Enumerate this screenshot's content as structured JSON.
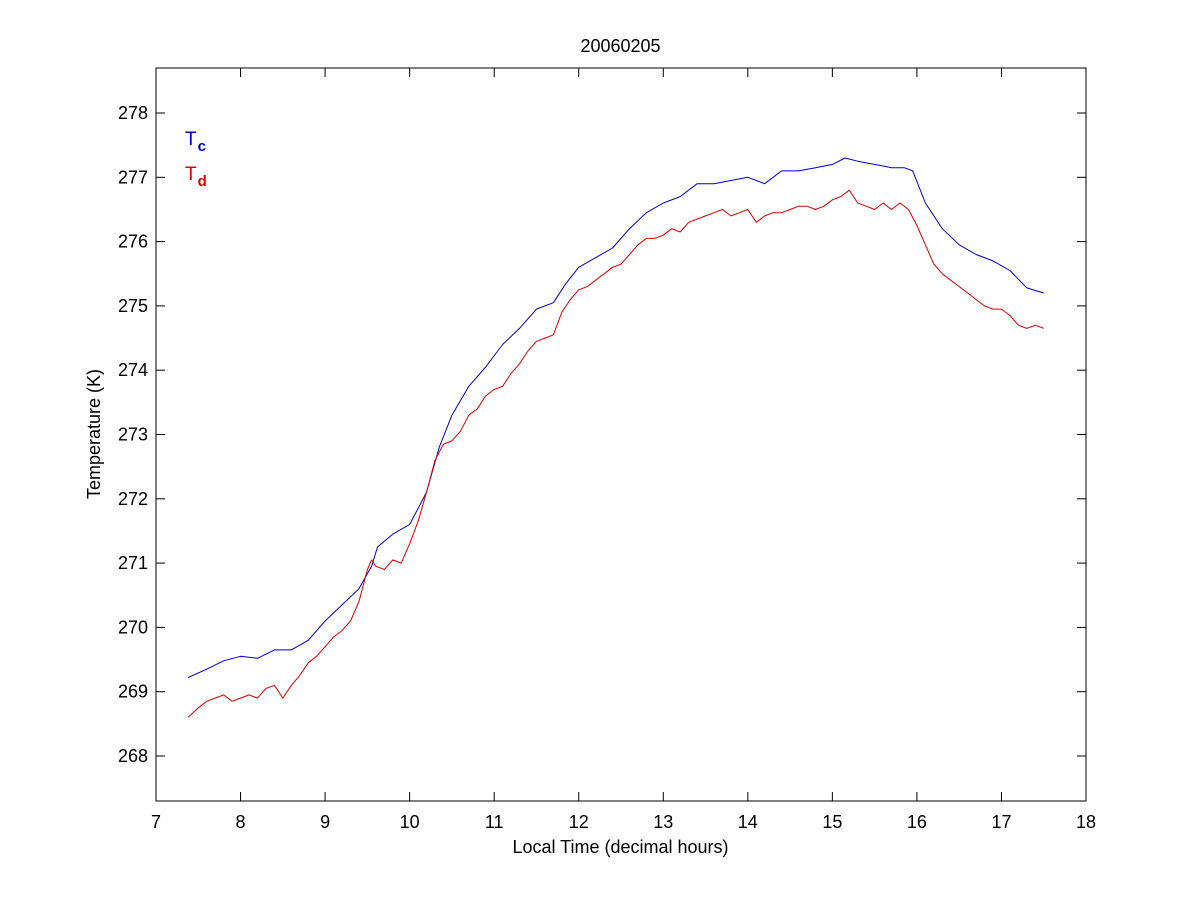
{
  "colors": {
    "tc": "#0000cc",
    "td": "#dd0000",
    "axes": "#000000",
    "background": "#ffffff"
  },
  "chart_data": {
    "type": "line",
    "title": "20060205",
    "xlabel": "Local Time (decimal hours)",
    "ylabel": "Temperature (K)",
    "xlim": [
      7,
      18
    ],
    "ylim": [
      267.3,
      278.7
    ],
    "xticks": [
      7,
      8,
      9,
      10,
      11,
      12,
      13,
      14,
      15,
      16,
      17,
      18
    ],
    "yticks": [
      268,
      269,
      270,
      271,
      272,
      273,
      274,
      275,
      276,
      277,
      278
    ],
    "grid": false,
    "legend_position": "top-left",
    "series": [
      {
        "name_main": "T",
        "name_sub": "c",
        "color": "#0000cc",
        "x": [
          7.38,
          7.6,
          7.8,
          8.0,
          8.2,
          8.4,
          8.6,
          8.8,
          9.0,
          9.2,
          9.4,
          9.55,
          9.62,
          9.8,
          10.0,
          10.2,
          10.35,
          10.5,
          10.7,
          10.9,
          11.1,
          11.3,
          11.5,
          11.7,
          11.85,
          12.0,
          12.2,
          12.4,
          12.6,
          12.8,
          13.0,
          13.2,
          13.4,
          13.6,
          13.8,
          14.0,
          14.2,
          14.4,
          14.6,
          14.8,
          15.0,
          15.15,
          15.3,
          15.5,
          15.7,
          15.85,
          15.95,
          16.1,
          16.3,
          16.5,
          16.7,
          16.9,
          17.1,
          17.3,
          17.5
        ],
        "y": [
          269.22,
          269.35,
          269.48,
          269.55,
          269.52,
          269.65,
          269.65,
          269.8,
          270.1,
          270.35,
          270.6,
          270.95,
          271.25,
          271.45,
          271.6,
          272.1,
          272.8,
          273.3,
          273.75,
          274.05,
          274.4,
          274.65,
          274.95,
          275.05,
          275.35,
          275.6,
          275.75,
          275.9,
          276.2,
          276.45,
          276.6,
          276.7,
          276.9,
          276.9,
          276.95,
          277.0,
          276.9,
          277.1,
          277.1,
          277.15,
          277.2,
          277.3,
          277.25,
          277.2,
          277.15,
          277.15,
          277.1,
          276.6,
          276.2,
          275.95,
          275.8,
          275.7,
          275.55,
          275.28,
          275.2
        ]
      },
      {
        "name_main": "T",
        "name_sub": "d",
        "color": "#dd0000",
        "x": [
          7.38,
          7.5,
          7.6,
          7.7,
          7.8,
          7.9,
          8.0,
          8.1,
          8.2,
          8.3,
          8.4,
          8.5,
          8.6,
          8.7,
          8.8,
          8.9,
          9.0,
          9.1,
          9.2,
          9.3,
          9.4,
          9.5,
          9.55,
          9.6,
          9.7,
          9.8,
          9.9,
          10.0,
          10.1,
          10.2,
          10.3,
          10.4,
          10.5,
          10.6,
          10.7,
          10.8,
          10.9,
          11.0,
          11.1,
          11.2,
          11.3,
          11.4,
          11.5,
          11.6,
          11.7,
          11.8,
          11.9,
          12.0,
          12.1,
          12.2,
          12.3,
          12.4,
          12.5,
          12.6,
          12.7,
          12.8,
          12.9,
          13.0,
          13.1,
          13.2,
          13.3,
          13.4,
          13.5,
          13.6,
          13.7,
          13.8,
          13.9,
          14.0,
          14.1,
          14.2,
          14.3,
          14.4,
          14.5,
          14.6,
          14.7,
          14.8,
          14.9,
          15.0,
          15.1,
          15.2,
          15.3,
          15.4,
          15.5,
          15.6,
          15.7,
          15.8,
          15.9,
          16.0,
          16.1,
          16.2,
          16.3,
          16.4,
          16.5,
          16.6,
          16.7,
          16.8,
          16.9,
          17.0,
          17.1,
          17.2,
          17.3,
          17.4,
          17.5
        ],
        "y": [
          268.6,
          268.75,
          268.85,
          268.9,
          268.95,
          268.85,
          268.9,
          268.95,
          268.9,
          269.05,
          269.1,
          268.9,
          269.1,
          269.25,
          269.45,
          269.55,
          269.7,
          269.85,
          269.95,
          270.1,
          270.4,
          270.9,
          271.05,
          270.95,
          270.9,
          271.05,
          271.0,
          271.3,
          271.65,
          272.1,
          272.6,
          272.85,
          272.9,
          273.05,
          273.3,
          273.4,
          273.6,
          273.7,
          273.75,
          273.95,
          274.1,
          274.3,
          274.45,
          274.5,
          274.55,
          274.9,
          275.1,
          275.25,
          275.3,
          275.4,
          275.5,
          275.6,
          275.65,
          275.8,
          275.95,
          276.05,
          276.05,
          276.1,
          276.2,
          276.15,
          276.3,
          276.35,
          276.4,
          276.45,
          276.5,
          276.4,
          276.45,
          276.5,
          276.3,
          276.4,
          276.45,
          276.45,
          276.5,
          276.55,
          276.55,
          276.5,
          276.55,
          276.65,
          276.7,
          276.8,
          276.6,
          276.55,
          276.5,
          276.6,
          276.5,
          276.6,
          276.5,
          276.25,
          275.95,
          275.65,
          275.5,
          275.4,
          275.3,
          275.2,
          275.1,
          275.0,
          274.95,
          274.95,
          274.85,
          274.7,
          274.65,
          274.7,
          274.65
        ]
      }
    ]
  }
}
